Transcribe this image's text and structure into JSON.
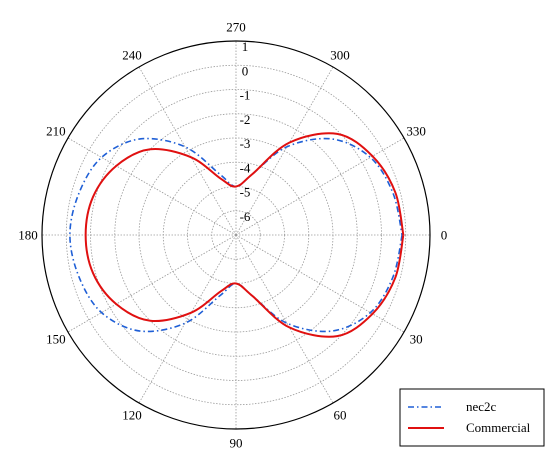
{
  "chart_data": {
    "type": "polar-line",
    "title": "",
    "angle_unit": "degrees",
    "angle_direction": "clockwise",
    "angle_zero_position": "right",
    "angle_ticks": [
      0,
      30,
      60,
      90,
      120,
      150,
      180,
      210,
      240,
      270,
      300,
      330
    ],
    "angle_tick_labels": [
      "0",
      "30",
      "60",
      "90",
      "120",
      "150",
      "180",
      "210",
      "240",
      "270",
      "300",
      "330"
    ],
    "radial_range": [
      -7,
      1
    ],
    "radial_ticks": [
      1,
      0,
      -1,
      -2,
      -3,
      -4,
      -5,
      -6
    ],
    "radial_tick_labels": [
      "1",
      "0",
      "-1",
      "-2",
      "-3",
      "-4",
      "-5",
      "-6"
    ],
    "grid": true,
    "legend_position": "bottom-right",
    "series": [
      {
        "name": "nec2c",
        "color": "#1f5fd6",
        "style": "dash-dot",
        "angles": [
          0,
          15,
          30,
          45,
          60,
          75,
          90,
          105,
          120,
          135,
          150,
          165,
          180,
          195,
          210,
          225,
          240,
          255,
          270,
          285,
          300,
          315,
          330,
          345,
          360
        ],
        "values": [
          -0.15,
          -0.3,
          -0.6,
          -1.4,
          -2.8,
          -4.4,
          -5.0,
          -4.4,
          -2.8,
          -1.4,
          -0.6,
          -0.3,
          -0.15,
          -0.3,
          -0.6,
          -1.4,
          -2.8,
          -4.4,
          -5.0,
          -4.4,
          -2.8,
          -1.4,
          -0.6,
          -0.3,
          -0.15
        ]
      },
      {
        "name": "Commercial",
        "color": "#e01010",
        "style": "solid",
        "angles": [
          0,
          15,
          30,
          45,
          60,
          75,
          90,
          105,
          120,
          135,
          150,
          165,
          180,
          195,
          210,
          225,
          240,
          255,
          270,
          285,
          300,
          315,
          330,
          345,
          360
        ],
        "values": [
          -0.1,
          -0.2,
          -0.5,
          -1.1,
          -2.6,
          -4.4,
          -5.0,
          -4.6,
          -3.3,
          -2.0,
          -1.3,
          -0.9,
          -0.8,
          -0.9,
          -1.3,
          -2.0,
          -3.3,
          -4.6,
          -5.0,
          -4.4,
          -2.6,
          -1.1,
          -0.5,
          -0.2,
          -0.1
        ]
      }
    ]
  },
  "legend": {
    "items": [
      "nec2c",
      "Commercial"
    ]
  }
}
